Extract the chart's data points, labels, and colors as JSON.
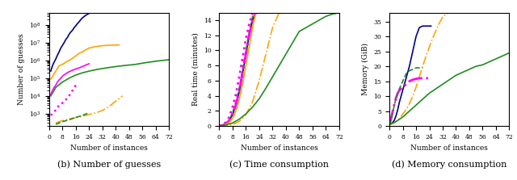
{
  "subplot_labels": [
    "(b) Number of guesses",
    "(c) Time consumption",
    "(d) Memory consumption"
  ],
  "ylabels": [
    "Number of guesses",
    "Real time (minutes)",
    "Memory (GiB)"
  ],
  "xlabel": "Number of instances",
  "xticks": [
    0,
    8,
    16,
    24,
    32,
    40,
    48,
    56,
    64,
    72
  ],
  "panel_b": {
    "ylim": [
      200,
      500000000.0
    ],
    "series": [
      {
        "name": "dark_blue_solid",
        "x": [
          1,
          2,
          3,
          4,
          5,
          6,
          7,
          8,
          9,
          10,
          11,
          12,
          13,
          14,
          15,
          16,
          17,
          18,
          19,
          20,
          21,
          22,
          23,
          24,
          25
        ],
        "y": [
          250000.0,
          500000.0,
          800000.0,
          1200000.0,
          2000000.0,
          3000000.0,
          5000000.0,
          7000000.0,
          10000000.0,
          15000000.0,
          20000000.0,
          30000000.0,
          40000000.0,
          50000000.0,
          70000000.0,
          90000000.0,
          120000000.0,
          150000000.0,
          200000000.0,
          250000000.0,
          300000000.0,
          350000000.0,
          400000000.0,
          450000000.0,
          500000000.0
        ],
        "ls": "-",
        "lw": 1.2,
        "color": "#00008B"
      },
      {
        "name": "orange_solid",
        "x": [
          1,
          2,
          3,
          4,
          5,
          6,
          8,
          10,
          12,
          14,
          16,
          18,
          20,
          22,
          24,
          26,
          28,
          30,
          32,
          34,
          36,
          38,
          40,
          42
        ],
        "y": [
          90000.0,
          120000.0,
          180000.0,
          250000.0,
          350000.0,
          500000.0,
          600000.0,
          800000.0,
          1000000.0,
          1300000.0,
          1800000.0,
          2500000.0,
          3000000.0,
          4000000.0,
          5000000.0,
          5500000.0,
          6000000.0,
          6500000.0,
          6800000.0,
          7000000.0,
          7200000.0,
          7300000.0,
          7400000.0,
          7500000.0
        ],
        "ls": "-",
        "lw": 1.2,
        "color": "#FFA500"
      },
      {
        "name": "green_solid",
        "x": [
          1,
          4,
          8,
          12,
          16,
          20,
          24,
          28,
          32,
          36,
          40,
          44,
          48,
          52,
          56,
          60,
          64,
          68,
          72
        ],
        "y": [
          10000.0,
          30000.0,
          60000.0,
          100000.0,
          150000.0,
          200000.0,
          250000.0,
          300000.0,
          350000.0,
          400000.0,
          450000.0,
          500000.0,
          550000.0,
          600000.0,
          700000.0,
          800000.0,
          900000.0,
          1000000.0,
          1100000.0
        ],
        "ls": "-",
        "lw": 1.2,
        "color": "#228B22"
      },
      {
        "name": "magenta_solid",
        "x": [
          1,
          2,
          3,
          4,
          5,
          6,
          7,
          8,
          10,
          12,
          14,
          16,
          18,
          20,
          22,
          24
        ],
        "y": [
          12000.0,
          20000.0,
          30000.0,
          40000.0,
          60000.0,
          80000.0,
          100000.0,
          130000.0,
          180000.0,
          230000.0,
          280000.0,
          330000.0,
          380000.0,
          450000.0,
          550000.0,
          650000.0
        ],
        "ls": "-",
        "lw": 1.2,
        "color": "#FF00FF"
      },
      {
        "name": "magenta_dot",
        "x": [
          1,
          2,
          3,
          4,
          5,
          6,
          8,
          10,
          12,
          14,
          16
        ],
        "y": [
          800,
          1000,
          1300,
          1600,
          2200,
          3000,
          4000,
          6000,
          10000.0,
          20000.0,
          40000.0
        ],
        "ls": ":",
        "lw": 1.8,
        "color": "#FF00FF"
      },
      {
        "name": "orange_dashdot",
        "x": [
          4,
          8,
          12,
          16,
          20,
          24,
          28,
          32,
          36,
          40,
          42,
          44
        ],
        "y": [
          300,
          400,
          500,
          600,
          700,
          900,
          1100,
          1500,
          2500,
          5000,
          7000,
          10000.0
        ],
        "ls": "-.",
        "lw": 1.2,
        "color": "#FFA500"
      },
      {
        "name": "green_dashdot",
        "x": [
          4,
          8,
          12,
          16,
          20,
          24
        ],
        "y": [
          250,
          350,
          450,
          600,
          800,
          1100
        ],
        "ls": "--",
        "lw": 1.2,
        "color": "#228B22"
      }
    ]
  },
  "panel_c": {
    "ylim": [
      0,
      15
    ],
    "yticks": [
      0,
      2,
      4,
      6,
      8,
      10,
      12,
      14
    ],
    "series": [
      {
        "name": "dark_blue_solid",
        "x": [
          0,
          2,
          4,
          6,
          8,
          10,
          12,
          14,
          16,
          18,
          20,
          22,
          24,
          26
        ],
        "y": [
          0,
          0.1,
          0.3,
          0.7,
          1.5,
          2.8,
          4.5,
          7.0,
          9.5,
          12.0,
          14.0,
          15.0,
          15.0,
          15.0
        ],
        "ls": "-",
        "lw": 1.2,
        "color": "#00008B"
      },
      {
        "name": "green_dashdot",
        "x": [
          0,
          2,
          4,
          6,
          8,
          10,
          12,
          14,
          16,
          18,
          20,
          22,
          24,
          26
        ],
        "y": [
          0,
          0.1,
          0.35,
          0.8,
          1.8,
          3.2,
          5.0,
          7.5,
          10.0,
          12.5,
          14.5,
          15.0,
          15.0,
          15.0
        ],
        "ls": "--",
        "lw": 1.2,
        "color": "#228B22"
      },
      {
        "name": "magenta_dot",
        "x": [
          0,
          2,
          4,
          6,
          8,
          10,
          12,
          14,
          16,
          18,
          20,
          22,
          24,
          26
        ],
        "y": [
          0,
          0.15,
          0.5,
          1.2,
          2.5,
          4.2,
          6.5,
          9.0,
          11.5,
          13.5,
          15.0,
          15.0,
          15.0,
          15.0
        ],
        "ls": ":",
        "lw": 2.0,
        "color": "#FF00FF"
      },
      {
        "name": "magenta_dashdot",
        "x": [
          0,
          2,
          4,
          6,
          8,
          10,
          12,
          14,
          16,
          18,
          20,
          22,
          24,
          26,
          28,
          30,
          32,
          34,
          36,
          38,
          40,
          42,
          44,
          46
        ],
        "y": [
          0,
          0.1,
          0.3,
          0.7,
          1.5,
          2.8,
          4.5,
          7.0,
          9.5,
          12.0,
          14.0,
          15.0,
          15.0,
          15.0,
          15.0,
          15.0,
          15.0,
          15.0,
          15.0,
          15.0,
          15.0,
          15.0,
          15.0,
          15.0
        ],
        "ls": "-.",
        "lw": 2.0,
        "color": "#FF00FF"
      },
      {
        "name": "orange_solid",
        "x": [
          0,
          2,
          4,
          6,
          8,
          10,
          12,
          14,
          16,
          18,
          20,
          22,
          24,
          26,
          28,
          30,
          32,
          34,
          36
        ],
        "y": [
          0,
          0.05,
          0.2,
          0.5,
          1.0,
          2.0,
          3.5,
          5.5,
          8.0,
          10.5,
          13.0,
          15.0,
          15.0,
          15.0,
          15.0,
          15.0,
          15.0,
          15.0,
          15.0
        ],
        "ls": "-",
        "lw": 1.2,
        "color": "#FFA500"
      },
      {
        "name": "orange_dashdot",
        "x": [
          0,
          4,
          8,
          12,
          16,
          20,
          24,
          28,
          32,
          36,
          40,
          44,
          48,
          52
        ],
        "y": [
          0,
          0.05,
          0.2,
          0.6,
          1.5,
          3.2,
          6.0,
          9.5,
          13.0,
          15.0,
          15.0,
          15.0,
          15.0,
          15.0
        ],
        "ls": "-.",
        "lw": 1.2,
        "color": "#FFA500"
      },
      {
        "name": "green_solid",
        "x": [
          0,
          4,
          8,
          12,
          16,
          20,
          24,
          28,
          32,
          36,
          40,
          44,
          48,
          52,
          56,
          60,
          64,
          68,
          72
        ],
        "y": [
          0,
          0.15,
          0.4,
          0.9,
          1.6,
          2.5,
          3.6,
          5.0,
          6.5,
          8.0,
          9.5,
          11.0,
          12.5,
          13.0,
          13.5,
          14.0,
          14.5,
          14.8,
          15.0
        ],
        "ls": "-",
        "lw": 1.2,
        "color": "#228B22"
      }
    ]
  },
  "panel_d": {
    "ylim": [
      0,
      38
    ],
    "yticks": [
      0,
      5,
      10,
      15,
      20,
      25,
      30,
      35
    ],
    "series": [
      {
        "name": "dark_blue_solid",
        "x": [
          0,
          1,
          2,
          3,
          4,
          5,
          6,
          8,
          10,
          12,
          14,
          16,
          18,
          20,
          22,
          24,
          25
        ],
        "y": [
          0.5,
          0.8,
          1.2,
          2.0,
          3.5,
          5.5,
          8.0,
          12.0,
          16.0,
          20.0,
          25.0,
          30.0,
          33.0,
          33.5,
          33.5,
          33.5,
          33.5
        ],
        "ls": "-",
        "lw": 1.2,
        "color": "#00008B"
      },
      {
        "name": "orange_dashdot",
        "x": [
          0,
          2,
          4,
          6,
          8,
          10,
          12,
          14,
          16,
          18,
          20,
          22,
          24,
          26,
          28,
          30,
          32,
          34,
          36,
          38,
          40,
          42,
          44,
          46,
          48
        ],
        "y": [
          0.5,
          0.8,
          1.5,
          2.5,
          4.0,
          5.5,
          7.5,
          10.0,
          13.0,
          16.5,
          20.0,
          23.5,
          26.5,
          29.5,
          32.0,
          34.5,
          36.5,
          37.5,
          38.0,
          38.0,
          38.0,
          38.0,
          38.0,
          38.0,
          38.0
        ],
        "ls": "-.",
        "lw": 1.2,
        "color": "#FFA500"
      },
      {
        "name": "green_solid",
        "x": [
          0,
          4,
          8,
          12,
          16,
          20,
          24,
          28,
          32,
          36,
          40,
          44,
          48,
          52,
          56,
          60,
          64,
          68,
          72
        ],
        "y": [
          0.5,
          1.5,
          3.0,
          5.0,
          7.0,
          9.0,
          11.0,
          12.5,
          14.0,
          15.5,
          17.0,
          18.0,
          19.0,
          20.0,
          20.5,
          21.5,
          22.5,
          23.5,
          24.5
        ],
        "ls": "-",
        "lw": 1.2,
        "color": "#228B22"
      },
      {
        "name": "magenta_dashdot",
        "x": [
          0,
          1,
          2,
          3,
          4,
          5,
          6,
          8,
          10,
          12,
          14,
          16,
          18,
          20,
          22,
          24
        ],
        "y": [
          0.8,
          2.5,
          5.0,
          7.5,
          9.5,
          11.0,
          12.0,
          13.0,
          14.0,
          15.0,
          15.5,
          15.8,
          16.0,
          16.0,
          16.0,
          16.0
        ],
        "ls": "-.",
        "lw": 2.0,
        "color": "#FF00FF"
      },
      {
        "name": "green_dashdot",
        "x": [
          0,
          1,
          2,
          3,
          4,
          5,
          6,
          8,
          10,
          12,
          14,
          16,
          18,
          20
        ],
        "y": [
          0.5,
          2.0,
          4.5,
          7.0,
          9.5,
          11.0,
          12.5,
          15.0,
          17.5,
          18.5,
          19.0,
          19.5,
          19.5,
          19.5
        ],
        "ls": "--",
        "lw": 1.2,
        "color": "#228B22"
      }
    ]
  }
}
